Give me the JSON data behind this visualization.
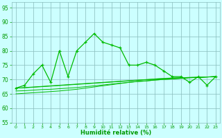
{
  "x": [
    0,
    1,
    2,
    3,
    4,
    5,
    6,
    7,
    8,
    9,
    10,
    11,
    12,
    13,
    14,
    15,
    16,
    17,
    18,
    19,
    20,
    21,
    22,
    23
  ],
  "main_line": [
    67,
    68,
    72,
    75,
    69,
    80,
    71,
    80,
    83,
    86,
    83,
    82,
    81,
    75,
    75,
    76,
    75,
    73,
    71,
    71,
    69,
    71,
    68,
    71
  ],
  "trend1": [
    67,
    67.2,
    67.4,
    67.6,
    67.8,
    68.0,
    68.2,
    68.4,
    68.6,
    68.8,
    69.0,
    69.2,
    69.4,
    69.6,
    69.8,
    70.0,
    70.2,
    70.4,
    70.5,
    70.6,
    70.7,
    70.8,
    70.9,
    71.0
  ],
  "trend2": [
    67,
    67.1,
    67.3,
    67.5,
    67.7,
    67.9,
    68.1,
    68.3,
    68.5,
    68.7,
    68.9,
    69.1,
    69.3,
    69.5,
    69.7,
    69.9,
    70.1,
    70.3,
    70.5,
    70.6,
    70.7,
    70.8,
    70.85,
    71.0
  ],
  "trend3": [
    66,
    66.1,
    66.3,
    66.5,
    66.6,
    66.8,
    67.0,
    67.2,
    67.5,
    67.8,
    68.1,
    68.4,
    68.7,
    69.0,
    69.3,
    69.5,
    69.8,
    70.0,
    70.2,
    70.4,
    70.6,
    70.7,
    70.85,
    71.0
  ],
  "trend4": [
    65,
    65.2,
    65.4,
    65.6,
    65.8,
    66.0,
    66.3,
    66.6,
    67.0,
    67.4,
    67.8,
    68.2,
    68.6,
    69.0,
    69.3,
    69.5,
    69.8,
    70.0,
    70.2,
    70.4,
    70.6,
    70.7,
    70.85,
    71.0
  ],
  "xlabel": "Humidité relative (%)",
  "ylim": [
    55,
    97
  ],
  "xlim": [
    -0.5,
    23.5
  ],
  "yticks": [
    55,
    60,
    65,
    70,
    75,
    80,
    85,
    90,
    95
  ],
  "xticks": [
    0,
    1,
    2,
    3,
    4,
    5,
    6,
    7,
    8,
    9,
    10,
    11,
    12,
    13,
    14,
    15,
    16,
    17,
    18,
    19,
    20,
    21,
    22,
    23
  ],
  "line_color": "#00bb00",
  "bg_color": "#ccffff",
  "grid_color": "#88bbbb",
  "text_color": "#009900",
  "tick_color": "#009900"
}
